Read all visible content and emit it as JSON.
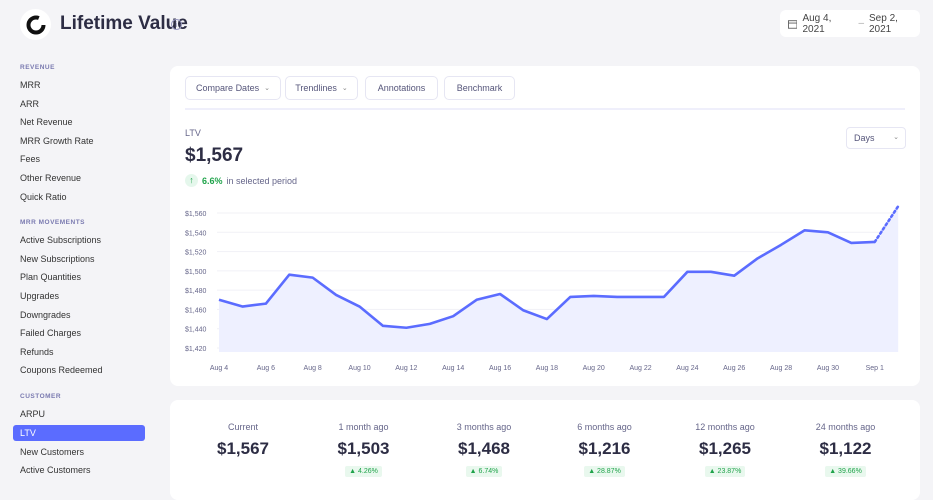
{
  "header": {
    "title": "Lifetime Value",
    "date_start": "Aug 4, 2021",
    "date_sep": "–",
    "date_end": "Sep 2, 2021"
  },
  "sidebar": {
    "sections": [
      {
        "label": "REVENUE",
        "items": [
          "MRR",
          "ARR",
          "Net Revenue",
          "MRR Growth Rate",
          "Fees",
          "Other Revenue",
          "Quick Ratio"
        ]
      },
      {
        "label": "MRR MOVEMENTS",
        "items": [
          "Active Subscriptions",
          "New Subscriptions",
          "Plan Quantities",
          "Upgrades",
          "Downgrades",
          "Failed Charges",
          "Refunds",
          "Coupons Redeemed"
        ]
      },
      {
        "label": "CUSTOMER",
        "items": [
          "ARPU",
          "LTV",
          "New Customers",
          "Active Customers"
        ]
      }
    ],
    "active": "LTV"
  },
  "toolbar": {
    "compare_dates": "Compare Dates",
    "trendlines": "Trendlines",
    "annotations": "Annotations",
    "benchmark": "Benchmark"
  },
  "metric": {
    "label": "LTV",
    "value": "$1,567",
    "change": "6.6%",
    "change_suffix": "in selected period",
    "interval": "Days"
  },
  "colors": {
    "accent": "#5b6cff",
    "positive": "#1fa34a"
  },
  "chart_data": {
    "type": "line",
    "x": [
      "Aug 4",
      "Aug 5",
      "Aug 6",
      "Aug 7",
      "Aug 8",
      "Aug 9",
      "Aug 10",
      "Aug 11",
      "Aug 12",
      "Aug 13",
      "Aug 14",
      "Aug 15",
      "Aug 16",
      "Aug 17",
      "Aug 18",
      "Aug 19",
      "Aug 20",
      "Aug 21",
      "Aug 22",
      "Aug 23",
      "Aug 24",
      "Aug 25",
      "Aug 26",
      "Aug 27",
      "Aug 28",
      "Aug 29",
      "Aug 30",
      "Aug 31",
      "Sep 1",
      "Sep 2"
    ],
    "values": [
      1470,
      1463,
      1466,
      1496,
      1493,
      1475,
      1463,
      1443,
      1441,
      1445,
      1453,
      1470,
      1476,
      1459,
      1450,
      1473,
      1474,
      1473,
      1473,
      1473,
      1499,
      1499,
      1495,
      1513,
      1527,
      1542,
      1540,
      1529,
      1530,
      1567
    ],
    "dotted_last_segment": true,
    "xticks": [
      "Aug 4",
      "Aug 6",
      "Aug 8",
      "Aug 10",
      "Aug 12",
      "Aug 14",
      "Aug 16",
      "Aug 18",
      "Aug 20",
      "Aug 22",
      "Aug 24",
      "Aug 26",
      "Aug 28",
      "Aug 30",
      "Sep 1"
    ],
    "yticks": [
      "$1,420",
      "$1,440",
      "$1,460",
      "$1,480",
      "$1,500",
      "$1,520",
      "$1,540",
      "$1,560"
    ],
    "ylim": [
      1420,
      1560
    ],
    "grid": true
  },
  "stats": [
    {
      "label": "Current",
      "value": "$1,567",
      "change": ""
    },
    {
      "label": "1 month ago",
      "value": "$1,503",
      "change": "▲ 4.26%"
    },
    {
      "label": "3 months ago",
      "value": "$1,468",
      "change": "▲ 6.74%"
    },
    {
      "label": "6 months ago",
      "value": "$1,216",
      "change": "▲ 28.87%"
    },
    {
      "label": "12 months ago",
      "value": "$1,265",
      "change": "▲ 23.87%"
    },
    {
      "label": "24 months ago",
      "value": "$1,122",
      "change": "▲ 39.66%"
    }
  ]
}
